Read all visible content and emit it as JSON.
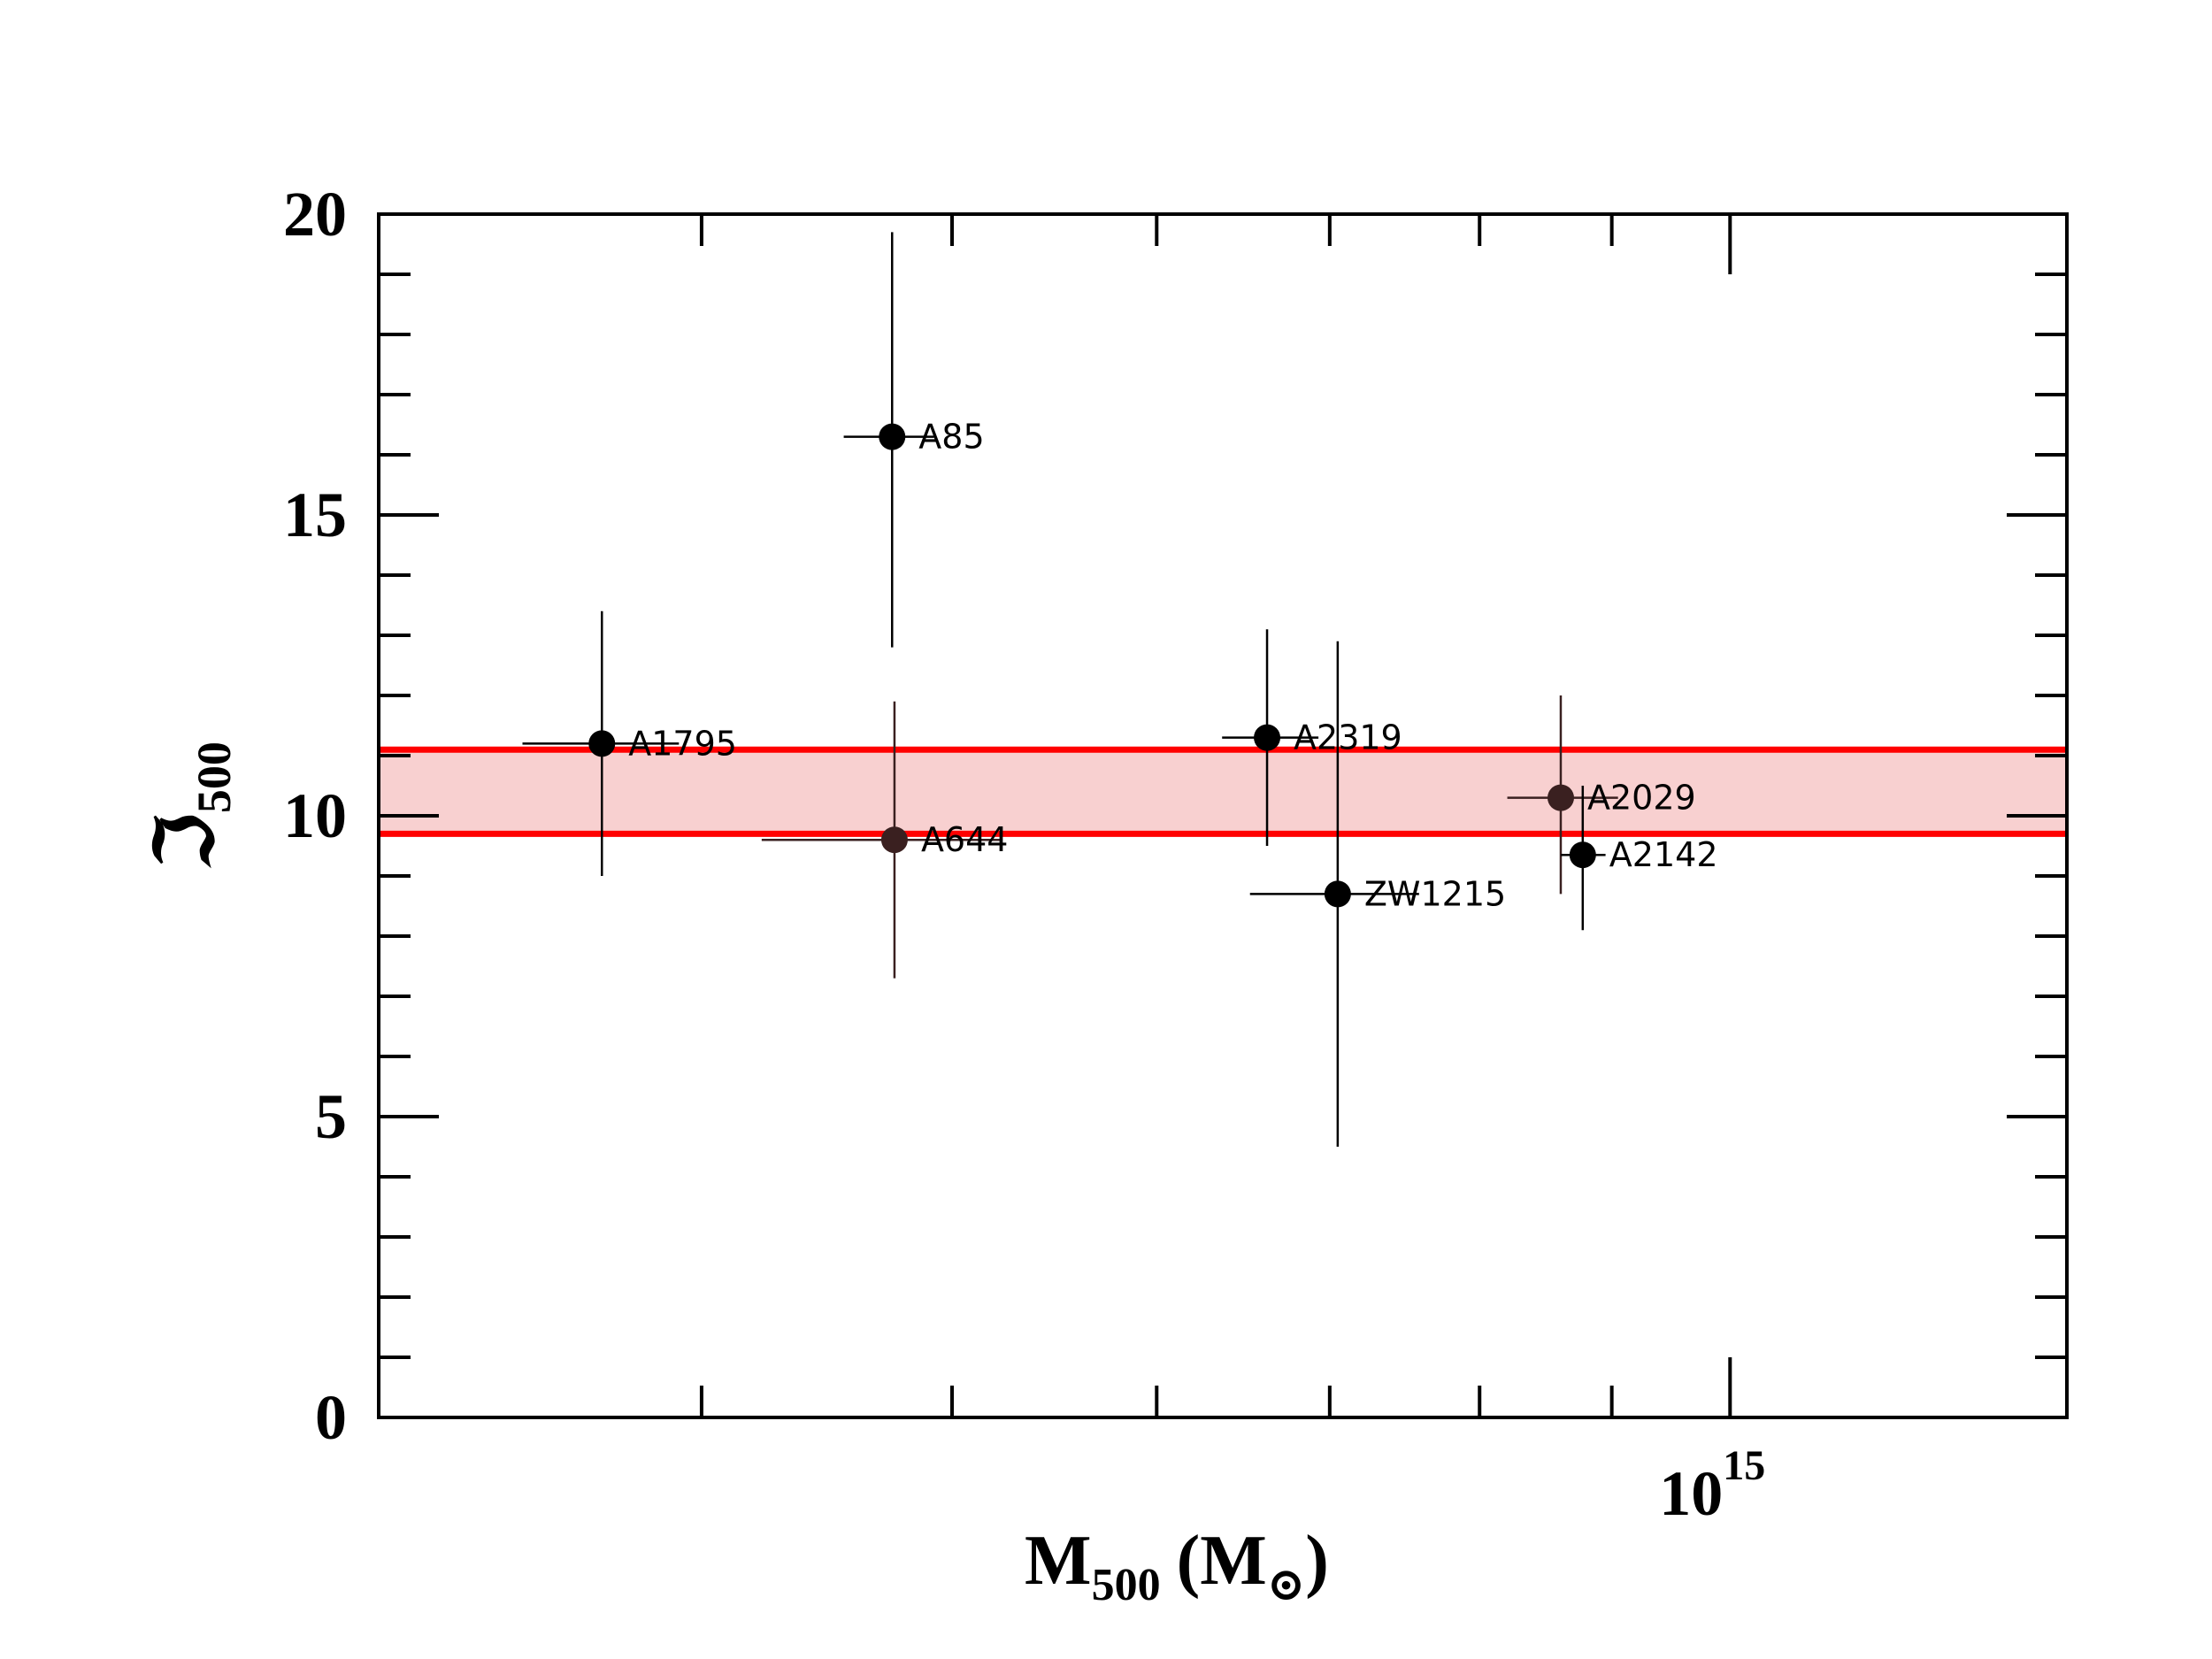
{
  "chart_data": {
    "type": "scatter",
    "title": "",
    "xlabel": {
      "main": "M",
      "sub": "500",
      "rest": "(M",
      "unit_sub": "⊙",
      "close": ")"
    },
    "ylabel": {
      "main": "ℑ",
      "sub": "500"
    },
    "x_scale": "log",
    "xlim": [
      300000000000000.0,
      1350000000000000.0
    ],
    "ylim": [
      0,
      20
    ],
    "y_ticks": [
      "0",
      "5",
      "10",
      "15",
      "20"
    ],
    "y_tick_values": [
      0,
      5,
      10,
      15,
      20
    ],
    "x_tick_label": {
      "base": "10",
      "exp": "15",
      "value": 1000000000000000.0
    },
    "band": {
      "y_low": 9.7,
      "y_high": 11.1,
      "color": "#ff0000",
      "fill": "#f8d0d0"
    },
    "points": [
      {
        "name": "A1795",
        "x": 366000000000000.0,
        "y": 11.2,
        "xerr": [
          341000000000000.0,
          392000000000000.0
        ],
        "yerr": [
          9.0,
          13.4
        ],
        "color": "#000000"
      },
      {
        "name": "A85",
        "x": 474000000000000.0,
        "y": 16.3,
        "xerr": [
          454000000000000.0,
          492000000000000.0
        ],
        "yerr": [
          12.8,
          19.7
        ],
        "color": "#000000"
      },
      {
        "name": "A644",
        "x": 475000000000000.0,
        "y": 9.6,
        "xerr": [
          422000000000000.0,
          523000000000000.0
        ],
        "yerr": [
          7.3,
          11.9
        ],
        "color": "#3a2020"
      },
      {
        "name": "A2319",
        "x": 662000000000000.0,
        "y": 11.3,
        "xerr": [
          636000000000000.0,
          693000000000000.0
        ],
        "yerr": [
          9.5,
          13.1
        ],
        "color": "#000000"
      },
      {
        "name": "ZW1215",
        "x": 705000000000000.0,
        "y": 8.7,
        "xerr": [
          652000000000000.0,
          758000000000000.0
        ],
        "yerr": [
          4.5,
          12.9
        ],
        "color": "#000000"
      },
      {
        "name": "A2029",
        "x": 860000000000000.0,
        "y": 10.3,
        "xerr": [
          820000000000000.0,
          905000000000000.0
        ],
        "yerr": [
          8.7,
          12.0
        ],
        "color": "#3a2020"
      },
      {
        "name": "A2142",
        "x": 877000000000000.0,
        "y": 9.35,
        "xerr": [
          860000000000000.0,
          895000000000000.0
        ],
        "yerr": [
          8.1,
          10.5
        ],
        "color": "#000000"
      }
    ],
    "grid": false,
    "legend": "none"
  }
}
